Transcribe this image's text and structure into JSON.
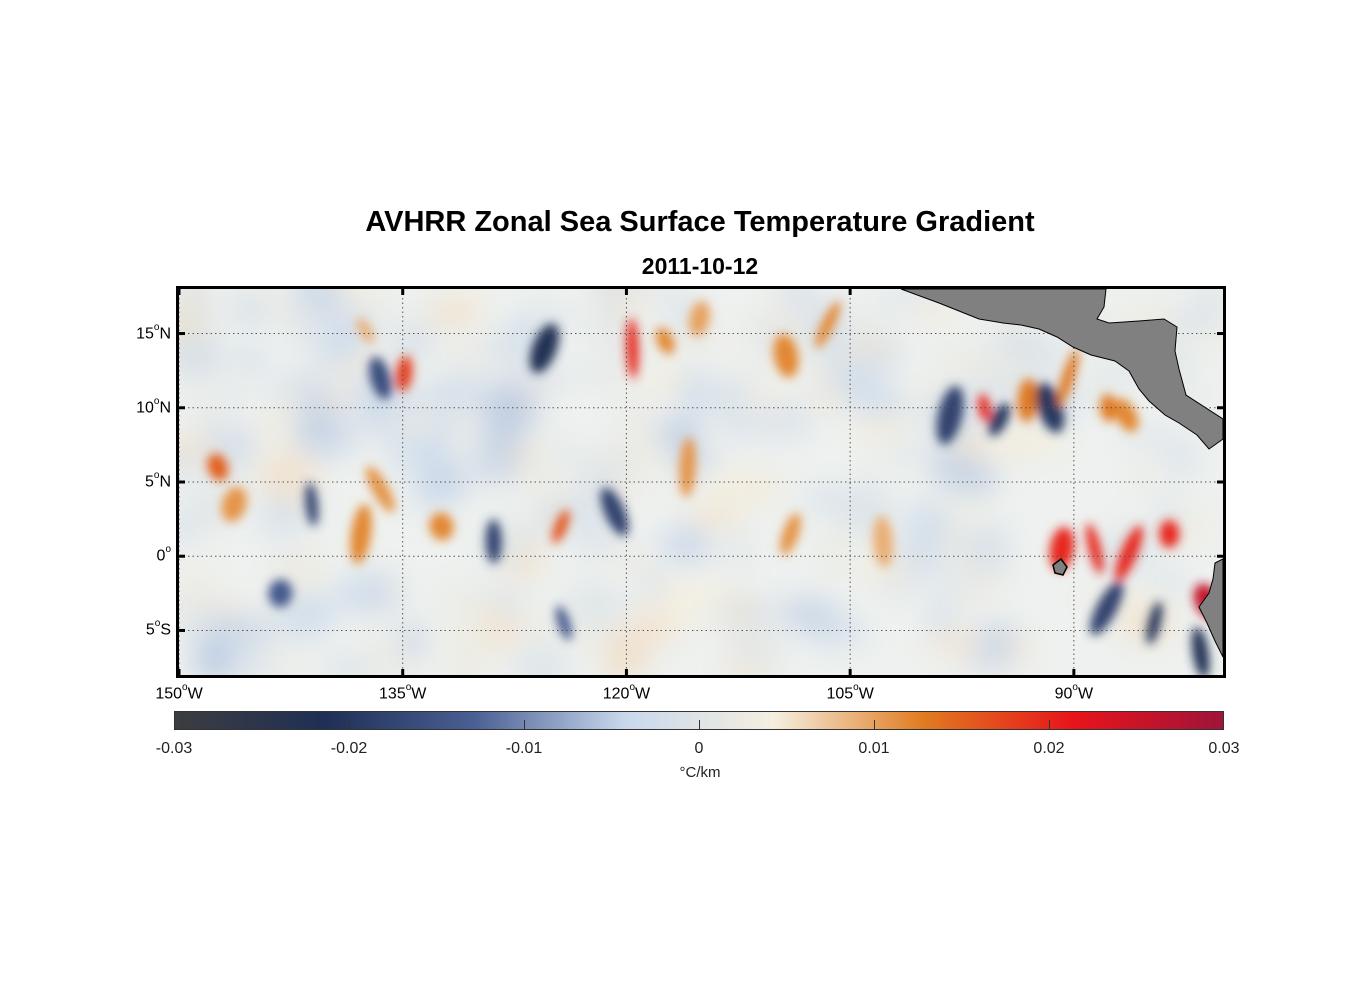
{
  "title": "AVHRR Zonal Sea Surface Temperature Gradient",
  "subtitle": "2011-10-12",
  "map": {
    "lon_range": [
      -150,
      -80
    ],
    "lat_range": [
      -8,
      18
    ],
    "lat_labels": [
      {
        "value": 15,
        "text": "15",
        "hemi": "N"
      },
      {
        "value": 10,
        "text": "10",
        "hemi": "N"
      },
      {
        "value": 5,
        "text": "5",
        "hemi": "N"
      },
      {
        "value": 0,
        "text": "0",
        "hemi": ""
      },
      {
        "value": -5,
        "text": "5",
        "hemi": "S"
      }
    ],
    "lon_labels": [
      {
        "value": -150,
        "text": "150",
        "hemi": "W"
      },
      {
        "value": -135,
        "text": "135",
        "hemi": "W"
      },
      {
        "value": -120,
        "text": "120",
        "hemi": "W"
      },
      {
        "value": -105,
        "text": "105",
        "hemi": "W"
      },
      {
        "value": -90,
        "text": "90",
        "hemi": "W"
      }
    ],
    "land_color": "#808080",
    "grid": "dotted"
  },
  "colorbar": {
    "range": [
      -0.03,
      0.03
    ],
    "ticks": [
      "-0.03",
      "-0.02",
      "-0.01",
      "0",
      "0.01",
      "0.02",
      "0.03"
    ],
    "unit": "°C/km",
    "colors": [
      "#3c3d40",
      "#1f2f55",
      "#4a5f94",
      "#c8d8ec",
      "#f5efe0",
      "#e07b20",
      "#e8141a",
      "#a0143a"
    ]
  },
  "chart_data": {
    "type": "heatmap",
    "title": "AVHRR Zonal Sea Surface Temperature Gradient",
    "subtitle": "2011-10-12",
    "colorbar_label": "°C/km",
    "clim": [
      -0.03,
      0.03
    ],
    "x_range": [
      -150,
      -80
    ],
    "y_range": [
      -8,
      18
    ],
    "features": [
      {
        "lon": -137.5,
        "lat": 15.2,
        "value": 0.009
      },
      {
        "lon": -134.9,
        "lat": 12.3,
        "value": 0.018
      },
      {
        "lon": -136.5,
        "lat": 12.0,
        "value": -0.016
      },
      {
        "lon": -125.5,
        "lat": 14.0,
        "value": -0.022
      },
      {
        "lon": -119.6,
        "lat": 14.0,
        "value": 0.02
      },
      {
        "lon": -117.4,
        "lat": 14.5,
        "value": 0.012
      },
      {
        "lon": -115.1,
        "lat": 16.0,
        "value": 0.01
      },
      {
        "lon": -109.3,
        "lat": 13.5,
        "value": 0.012
      },
      {
        "lon": -106.5,
        "lat": 15.6,
        "value": 0.012
      },
      {
        "lon": -115.9,
        "lat": 6.0,
        "value": 0.011
      },
      {
        "lon": -147.4,
        "lat": 6.0,
        "value": 0.015
      },
      {
        "lon": -146.3,
        "lat": 3.5,
        "value": 0.011
      },
      {
        "lon": -141.1,
        "lat": 3.5,
        "value": -0.018
      },
      {
        "lon": -136.5,
        "lat": 4.5,
        "value": 0.011
      },
      {
        "lon": -137.8,
        "lat": 1.5,
        "value": 0.012
      },
      {
        "lon": -132.4,
        "lat": 2.0,
        "value": 0.012
      },
      {
        "lon": -124.4,
        "lat": 2.0,
        "value": 0.016
      },
      {
        "lon": -128.9,
        "lat": 1.0,
        "value": -0.018
      },
      {
        "lon": -120.8,
        "lat": 3.0,
        "value": -0.018
      },
      {
        "lon": -98.3,
        "lat": 9.5,
        "value": -0.018
      },
      {
        "lon": -96.0,
        "lat": 10.0,
        "value": 0.02
      },
      {
        "lon": -95.0,
        "lat": 9.2,
        "value": -0.02
      },
      {
        "lon": -93.1,
        "lat": 10.5,
        "value": 0.013
      },
      {
        "lon": -91.6,
        "lat": 10.0,
        "value": -0.02
      },
      {
        "lon": -90.4,
        "lat": 12.0,
        "value": 0.013
      },
      {
        "lon": -87.7,
        "lat": 10.0,
        "value": 0.013
      },
      {
        "lon": -86.5,
        "lat": 9.5,
        "value": 0.012
      },
      {
        "lon": -90.8,
        "lat": 0.5,
        "value": 0.02
      },
      {
        "lon": -88.6,
        "lat": 0.5,
        "value": 0.02
      },
      {
        "lon": -86.3,
        "lat": 0.2,
        "value": 0.02
      },
      {
        "lon": -83.6,
        "lat": 1.5,
        "value": 0.02
      },
      {
        "lon": -81.1,
        "lat": -3.0,
        "value": 0.026
      },
      {
        "lon": -84.6,
        "lat": -4.5,
        "value": -0.022
      },
      {
        "lon": -81.5,
        "lat": -6.5,
        "value": -0.022
      },
      {
        "lon": -87.8,
        "lat": -3.5,
        "value": -0.018
      },
      {
        "lon": -143.2,
        "lat": -2.5,
        "value": -0.014
      },
      {
        "lon": -124.2,
        "lat": -4.5,
        "value": -0.014
      },
      {
        "lon": -109.0,
        "lat": 1.5,
        "value": 0.011
      },
      {
        "lon": -102.8,
        "lat": 1.0,
        "value": 0.009
      }
    ]
  }
}
